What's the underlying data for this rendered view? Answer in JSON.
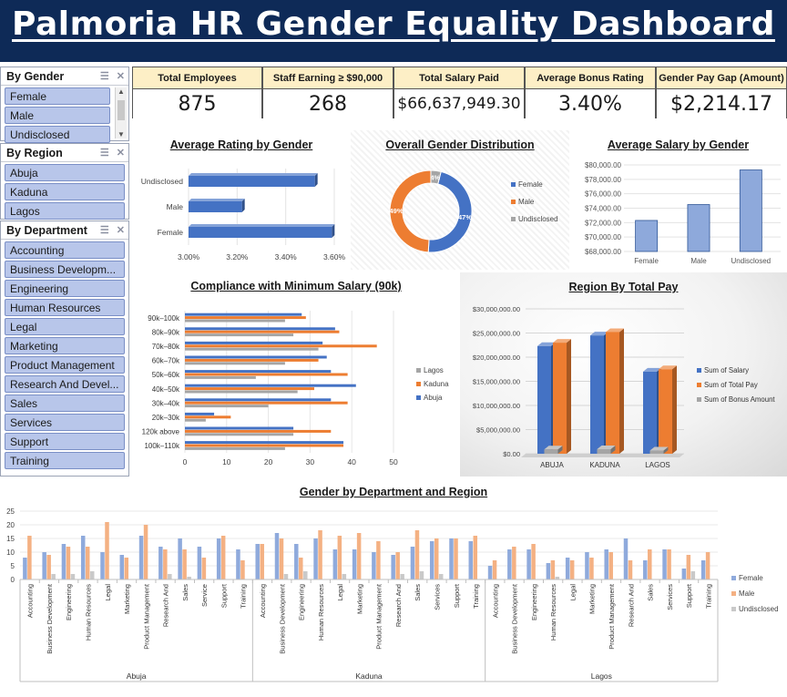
{
  "title": "Palmoria HR Gender Equality Dashboard",
  "slicers": [
    {
      "title": "By Gender",
      "items": [
        "Female",
        "Male",
        "Undisclosed"
      ]
    },
    {
      "title": "By Region",
      "items": [
        "Abuja",
        "Kaduna",
        "Lagos"
      ]
    },
    {
      "title": "By Department",
      "items": [
        "Accounting",
        "Business Developm...",
        "Engineering",
        "Human Resources",
        "Legal",
        "Marketing",
        "Product Management",
        "Research And Devel...",
        "Sales",
        "Services",
        "Support",
        "Training"
      ]
    }
  ],
  "kpis": [
    {
      "label": "Total Employees",
      "value": "875"
    },
    {
      "label": "Staff Earning ≥ $90,000",
      "value": "268"
    },
    {
      "label": "Total Salary Paid",
      "value": "$66,637,949.30"
    },
    {
      "label": "Average Bonus Rating",
      "value": "3.40%"
    },
    {
      "label": "Gender Pay Gap (Amount)",
      "value": "$2,214.17"
    }
  ],
  "colors": {
    "blue": "#4472c4",
    "orange": "#ed7d31",
    "gray": "#a5a5a5",
    "navy": "#0e2a57",
    "kpi_header": "#fdefc6",
    "slicer_item": "#b8c6ea"
  },
  "chart_data": [
    {
      "id": "rating",
      "type": "bar",
      "orientation": "horizontal",
      "title": "Average Rating by Gender",
      "categories": [
        "Undisclosed",
        "Male",
        "Female"
      ],
      "values": [
        3.52,
        3.22,
        3.59
      ],
      "xlim": [
        3.0,
        3.6
      ],
      "ticks": [
        "3.00%",
        "3.20%",
        "3.40%",
        "3.60%"
      ]
    },
    {
      "id": "distribution",
      "type": "pie",
      "title": "Overall Gender Distribution",
      "labels": [
        "Female",
        "Male",
        "Undisclosed"
      ],
      "values": [
        47,
        49,
        4
      ],
      "value_labels": [
        "47%",
        "49%",
        "4%"
      ]
    },
    {
      "id": "avg_salary",
      "type": "bar",
      "title": "Average Salary by Gender",
      "categories": [
        "Female",
        "Male",
        "Undisclosed"
      ],
      "values": [
        72300,
        74500,
        79300
      ],
      "ylim": [
        68000,
        80000
      ],
      "ticks": [
        "$68,000.00",
        "$70,000.00",
        "$72,000.00",
        "$74,000.00",
        "$76,000.00",
        "$78,000.00",
        "$80,000.00"
      ]
    },
    {
      "id": "compliance",
      "type": "bar",
      "orientation": "horizontal",
      "title": "Compliance with Minimum Salary (90k)",
      "categories": [
        "90k-100k",
        "80k-90k",
        "70k-80k",
        "60k-70k",
        "50k-60k",
        "40k-50k",
        "30k-40k",
        "20k-30k",
        "120k above",
        "100k-110k"
      ],
      "category_labels": [
        "90k–100k",
        "80k–90k",
        "70k–80k",
        "60k–70k",
        "50k–60k",
        "40k–50k",
        "30k–40k",
        "20k–30k",
        "120k above",
        "100k–110k"
      ],
      "series": [
        {
          "name": "Lagos",
          "values": [
            24,
            26,
            32,
            24,
            17,
            27,
            20,
            5,
            26,
            24
          ]
        },
        {
          "name": "Kaduna",
          "values": [
            29,
            37,
            46,
            32,
            39,
            31,
            39,
            11,
            35,
            38
          ]
        },
        {
          "name": "Abuja",
          "values": [
            28,
            36,
            33,
            34,
            35,
            41,
            35,
            7,
            26,
            38
          ]
        }
      ],
      "xlim": [
        0,
        50
      ],
      "ticks": [
        "0",
        "10",
        "20",
        "30",
        "40",
        "50"
      ]
    },
    {
      "id": "region_pay",
      "type": "bar",
      "title": "Region By Total Pay",
      "categories": [
        "ABUJA",
        "KADUNA",
        "LAGOS"
      ],
      "series": [
        {
          "name": "Sum of Salary",
          "values": [
            22300000,
            24500000,
            17000000
          ]
        },
        {
          "name": "Sum of Total Pay",
          "values": [
            23000000,
            25200000,
            17500000
          ]
        },
        {
          "name": "Sum of Bonus Amount",
          "values": [
            900000,
            950000,
            650000
          ]
        }
      ],
      "ylim": [
        0,
        30000000
      ],
      "ticks": [
        "$0.00",
        "$5,000,000.00",
        "$10,000,000.00",
        "$15,000,000.00",
        "$20,000,000.00",
        "$25,000,000.00",
        "$30,000,000.00"
      ]
    },
    {
      "id": "dept_region",
      "type": "bar",
      "title": "Gender by Department and Region",
      "groups": [
        "Abuja",
        "Kaduna",
        "Lagos"
      ],
      "departments": [
        [
          "Accounting",
          "Business Development",
          "Engineering",
          "Human Resources",
          "Legal",
          "Marketing",
          "Product Management",
          "Research And",
          "Sales",
          "Service",
          "Support",
          "Training"
        ],
        [
          "Accounting",
          "Business Development",
          "Engineering",
          "Human Resources",
          "Legal",
          "Marketing",
          "Product Management",
          "Research And",
          "Sales",
          "Services",
          "Support",
          "Training"
        ],
        [
          "Accounting",
          "Business Development",
          "Engineering",
          "Human Resources",
          "Legal",
          "Marketing",
          "Product Management",
          "Research And",
          "Sales",
          "Services",
          "Support",
          "Training"
        ]
      ],
      "series": [
        {
          "name": "Female",
          "values": [
            8,
            10,
            13,
            16,
            10,
            9,
            16,
            12,
            15,
            12,
            15,
            11,
            13,
            17,
            13,
            15,
            11,
            11,
            10,
            9,
            12,
            14,
            15,
            14,
            5,
            11,
            11,
            6,
            8,
            10,
            11,
            15,
            7,
            11,
            4,
            7
          ]
        },
        {
          "name": "Male",
          "values": [
            16,
            9,
            12,
            12,
            21,
            8,
            20,
            11,
            11,
            8,
            16,
            7,
            13,
            15,
            8,
            18,
            16,
            17,
            14,
            10,
            18,
            15,
            15,
            16,
            7,
            12,
            13,
            7,
            7,
            8,
            10,
            7,
            11,
            11,
            9,
            10
          ]
        },
        {
          "name": "Undisclosed",
          "values": [
            0,
            2,
            2,
            3,
            0,
            0,
            0,
            2,
            1,
            0,
            0,
            0,
            0,
            2,
            3,
            0,
            2,
            0,
            0,
            2,
            3,
            2,
            0,
            0,
            0,
            0,
            0,
            1,
            0,
            0,
            0,
            0,
            0,
            0,
            3,
            0
          ]
        }
      ],
      "ylim": [
        0,
        25
      ],
      "ticks": [
        "0",
        "5",
        "10",
        "15",
        "20",
        "25"
      ]
    }
  ]
}
